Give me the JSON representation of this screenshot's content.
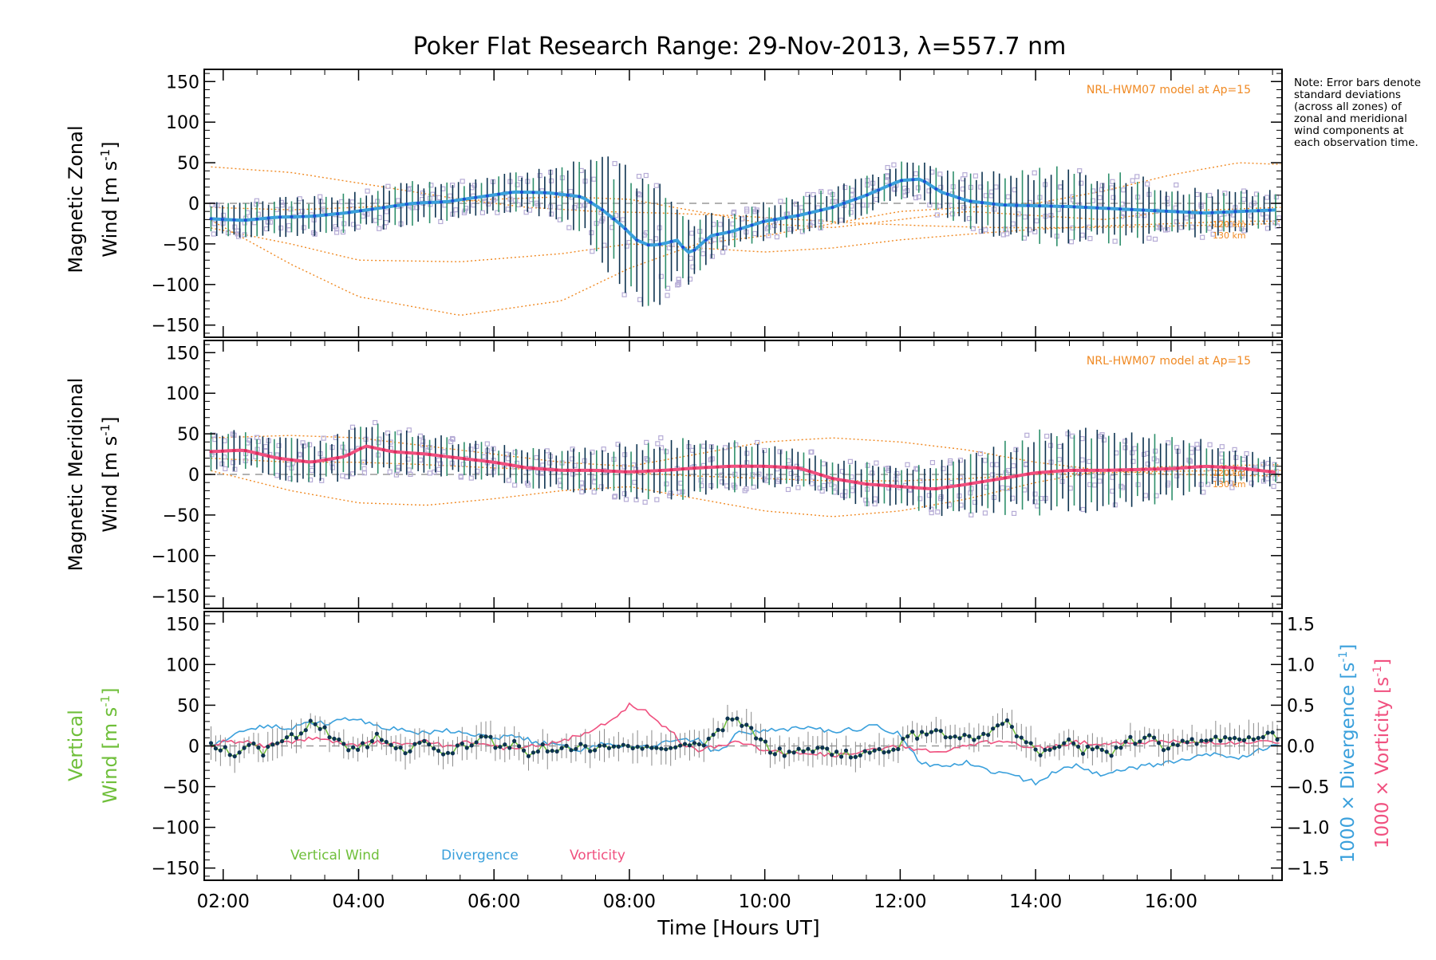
{
  "figure": {
    "title": "Poker Flat Research Range: 29-Nov-2013, λ=557.7 nm",
    "note": "Note: Error bars denote standard deviations (across all zones) of zonal and meridional wind components at each observation time.",
    "xlabel": "Time [Hours UT]",
    "colors": {
      "model": "#f08a24",
      "zonal": "#3aa0dc",
      "meridional": "#f0507f",
      "vertical": "#6fbf3a",
      "divergence": "#3aa0dc",
      "vorticity": "#f0507f",
      "scatter": "#b6acd6",
      "errorbar": "#0d3350",
      "zero": "#999999"
    }
  },
  "chart_data": [
    {
      "type": "line",
      "panel": "zonal",
      "ylabel_line1": "Magnetic Zonal",
      "ylabel_line2": "Wind",
      "ylabel_units": "[m s",
      "ylabel_sup": "-1",
      "ylabel_close": "]",
      "model_label": "NRL-HWM07 model at Ap=15",
      "alt_labels": [
        "120 km",
        "130 km"
      ],
      "ylim": [
        -165,
        165
      ],
      "yticks": [
        -150,
        -100,
        -50,
        0,
        50,
        100,
        150
      ],
      "xlim": [
        1.72,
        17.64
      ],
      "x_hours": [
        1.8,
        2.3,
        2.8,
        3.3,
        3.8,
        4.3,
        4.8,
        5.3,
        5.8,
        6.3,
        6.8,
        7.3,
        7.6,
        7.9,
        8.1,
        8.3,
        8.5,
        8.7,
        8.8,
        8.9,
        9.2,
        9.5,
        10.0,
        10.5,
        11.0,
        11.5,
        12.0,
        12.3,
        12.6,
        13.0,
        13.5,
        14.0,
        14.5,
        15.0,
        15.5,
        16.0,
        16.5,
        17.0,
        17.6
      ],
      "mean": [
        -19,
        -21,
        -17,
        -16,
        -12,
        -6,
        0,
        2,
        8,
        14,
        13,
        8,
        -8,
        -28,
        -45,
        -52,
        -50,
        -45,
        -55,
        -62,
        -40,
        -35,
        -22,
        -15,
        -5,
        10,
        28,
        30,
        14,
        3,
        -2,
        -3,
        -4,
        -6,
        -8,
        -10,
        -12,
        -10,
        -8
      ],
      "spread": [
        18,
        18,
        20,
        20,
        20,
        22,
        22,
        20,
        18,
        20,
        25,
        40,
        55,
        70,
        80,
        75,
        60,
        50,
        40,
        30,
        25,
        20,
        20,
        20,
        20,
        20,
        20,
        20,
        25,
        30,
        35,
        40,
        40,
        38,
        35,
        30,
        25,
        22,
        20
      ],
      "model_curves": [
        {
          "x": [
            1.8,
            3.0,
            4.0,
            5.5,
            7.0,
            8.0,
            9.0,
            10.0,
            11.0,
            12.0,
            13.0,
            14.0,
            15.0,
            16.0,
            17.0,
            17.6
          ],
          "y": [
            -20,
            -75,
            -115,
            -138,
            -120,
            -80,
            -50,
            -40,
            -25,
            -10,
            -5,
            0,
            15,
            35,
            50,
            48
          ]
        },
        {
          "x": [
            1.8,
            3.0,
            4.0,
            5.5,
            7.0,
            8.0,
            9.0,
            10.0,
            11.0,
            12.0,
            13.0,
            14.0,
            15.0,
            16.0,
            17.0,
            17.6
          ],
          "y": [
            -30,
            -50,
            -70,
            -72,
            -62,
            -50,
            -55,
            -60,
            -55,
            -45,
            -38,
            -32,
            -28,
            -25,
            -22,
            -22
          ]
        },
        {
          "x": [
            1.8,
            3.0,
            4.0,
            5.5,
            6.5,
            7.5,
            8.5,
            9.5,
            10.5,
            11.5,
            12.5,
            13.5,
            14.5,
            15.5,
            16.5,
            17.6
          ],
          "y": [
            45,
            38,
            25,
            5,
            -5,
            -10,
            -12,
            -15,
            -20,
            -25,
            -28,
            -30,
            -30,
            -29,
            -27,
            -25
          ]
        },
        {
          "x": [
            1.8,
            3.0,
            4.0,
            5.0,
            6.0,
            7.0,
            8.0,
            9.0,
            10.0,
            11.0,
            12.0,
            13.0,
            14.0,
            15.0,
            16.0,
            17.6
          ],
          "y": [
            -5,
            -8,
            -5,
            0,
            5,
            8,
            5,
            -10,
            -25,
            -30,
            -20,
            -10,
            -15,
            -20,
            -10,
            -5
          ]
        }
      ]
    },
    {
      "type": "line",
      "panel": "meridional",
      "ylabel_line1": "Magnetic Meridional",
      "ylabel_line2": "Wind",
      "ylabel_units": "[m s",
      "ylabel_sup": "-1",
      "ylabel_close": "]",
      "model_label": "NRL-HWM07 model at Ap=15",
      "alt_labels": [
        "120 km",
        "130 km"
      ],
      "ylim": [
        -165,
        165
      ],
      "yticks": [
        -150,
        -100,
        -50,
        0,
        50,
        100,
        150
      ],
      "xlim": [
        1.72,
        17.64
      ],
      "x_hours": [
        1.8,
        2.3,
        2.8,
        3.3,
        3.8,
        4.1,
        4.5,
        5.0,
        5.5,
        6.0,
        6.5,
        7.0,
        7.5,
        8.0,
        8.5,
        9.0,
        9.5,
        10.0,
        10.5,
        11.0,
        11.5,
        12.0,
        12.5,
        13.0,
        13.5,
        14.0,
        14.5,
        15.0,
        15.5,
        16.0,
        16.5,
        17.0,
        17.6
      ],
      "mean": [
        28,
        30,
        20,
        15,
        22,
        35,
        28,
        25,
        20,
        15,
        8,
        5,
        5,
        3,
        5,
        8,
        10,
        10,
        8,
        -5,
        -12,
        -15,
        -18,
        -12,
        -5,
        2,
        5,
        5,
        6,
        7,
        10,
        8,
        2
      ],
      "spread": [
        20,
        22,
        22,
        22,
        25,
        30,
        25,
        22,
        20,
        20,
        20,
        22,
        25,
        30,
        35,
        30,
        28,
        25,
        22,
        20,
        22,
        25,
        28,
        32,
        38,
        42,
        45,
        42,
        38,
        32,
        28,
        20,
        15
      ],
      "model_curves": [
        {
          "x": [
            1.8,
            3.0,
            4.0,
            5.0,
            6.0,
            7.0,
            8.0,
            9.0,
            10.0,
            11.0,
            12.0,
            13.0,
            14.0,
            15.0,
            16.0,
            17.6
          ],
          "y": [
            5,
            -20,
            -35,
            -38,
            -30,
            -20,
            -15,
            -30,
            -45,
            -52,
            -45,
            -30,
            -10,
            5,
            10,
            12
          ]
        },
        {
          "x": [
            1.8,
            3.0,
            4.0,
            5.0,
            6.0,
            7.0,
            8.0,
            9.0,
            10.0,
            11.0,
            12.0,
            13.0,
            14.0,
            15.0,
            16.0,
            17.6
          ],
          "y": [
            45,
            48,
            45,
            35,
            25,
            15,
            10,
            25,
            40,
            45,
            40,
            30,
            15,
            5,
            0,
            -2
          ]
        },
        {
          "x": [
            1.8,
            3.0,
            4.0,
            5.0,
            6.0,
            7.0,
            8.0,
            9.0,
            10.0,
            11.0,
            12.0,
            13.0,
            14.0,
            15.0,
            16.0,
            17.6
          ],
          "y": [
            20,
            15,
            15,
            12,
            8,
            5,
            2,
            -2,
            -5,
            -8,
            -8,
            -5,
            0,
            2,
            4,
            5
          ]
        }
      ]
    },
    {
      "type": "line",
      "panel": "vertical",
      "ylabel_line1": "Vertical",
      "ylabel_line2": "Wind",
      "ylabel_units": "[m s",
      "ylabel_sup": "-1",
      "ylabel_close": "]",
      "ylim": [
        -165,
        165
      ],
      "yticks": [
        -150,
        -100,
        -50,
        0,
        50,
        100,
        150
      ],
      "xlim": [
        1.72,
        17.64
      ],
      "xticks": [
        "02:00",
        "04:00",
        "06:00",
        "08:00",
        "10:00",
        "12:00",
        "14:00",
        "16:00"
      ],
      "xtick_hours": [
        2,
        4,
        6,
        8,
        10,
        12,
        14,
        16
      ],
      "y2ticks": [
        "1.5",
        "1.0",
        "0.5",
        "0.0",
        "−0.5",
        "−1.0",
        "−1.5"
      ],
      "y2tick_values": [
        1.5,
        1.0,
        0.5,
        0.0,
        -0.5,
        -1.0,
        -1.5
      ],
      "y2lim": [
        -1.65,
        1.65
      ],
      "y2label_div": "1000 × Divergence",
      "y2label_vort": "1000 × Vorticity",
      "y2label_units": "[s",
      "y2label_sup": "-1",
      "y2label_close": "]",
      "legend": [
        "Vertical Wind",
        "Divergence",
        "Vorticity"
      ],
      "vertical_wind": {
        "x": [
          1.8,
          2.0,
          2.2,
          2.4,
          2.6,
          2.8,
          3.0,
          3.2,
          3.3,
          3.5,
          3.7,
          3.9,
          4.1,
          4.3,
          4.5,
          4.7,
          4.9,
          5.1,
          5.3,
          5.5,
          5.7,
          5.9,
          6.1,
          6.3,
          6.5,
          6.7,
          6.9,
          7.1,
          7.3,
          7.5,
          7.7,
          7.9,
          8.1,
          8.3,
          8.5,
          8.7,
          8.9,
          9.1,
          9.3,
          9.5,
          9.7,
          9.9,
          10.1,
          10.3,
          10.5,
          10.7,
          10.9,
          11.1,
          11.3,
          11.5,
          11.7,
          11.9,
          12.1,
          12.3,
          12.5,
          12.7,
          12.9,
          13.1,
          13.3,
          13.5,
          13.6,
          13.7,
          13.9,
          14.1,
          14.3,
          14.5,
          14.7,
          14.9,
          15.1,
          15.3,
          15.5,
          15.7,
          15.9,
          16.1,
          16.3,
          16.5,
          16.7,
          16.9,
          17.1,
          17.3,
          17.5
        ],
        "y": [
          0,
          -5,
          -10,
          5,
          -8,
          0,
          10,
          15,
          28,
          18,
          5,
          -5,
          0,
          12,
          -2,
          -8,
          5,
          2,
          -12,
          0,
          5,
          10,
          -5,
          3,
          -8,
          0,
          -6,
          -3,
          0,
          -5,
          0,
          2,
          0,
          -3,
          0,
          3,
          0,
          5,
          15,
          35,
          25,
          10,
          -5,
          -8,
          -5,
          -3,
          -6,
          -8,
          -10,
          -8,
          -6,
          -5,
          12,
          14,
          15,
          15,
          10,
          12,
          15,
          25,
          30,
          15,
          5,
          -10,
          -2,
          5,
          -8,
          0,
          -12,
          5,
          8,
          12,
          -5,
          0,
          8,
          5,
          10,
          12,
          8,
          10,
          12
        ]
      },
      "divergence": {
        "x": [
          1.8,
          2.0,
          2.3,
          2.6,
          3.0,
          3.3,
          3.6,
          3.9,
          4.3,
          4.6,
          5.0,
          5.3,
          5.6,
          6.0,
          6.3,
          6.6,
          7.0,
          7.3,
          7.6,
          8.0,
          8.3,
          8.6,
          9.0,
          9.3,
          9.6,
          10.0,
          10.3,
          10.6,
          11.0,
          11.3,
          11.6,
          12.0,
          12.3,
          12.6,
          13.0,
          13.3,
          13.6,
          14.0,
          14.3,
          14.6,
          15.0,
          15.3,
          15.6,
          16.0,
          16.3,
          16.6,
          17.0,
          17.3,
          17.6
        ],
        "y": [
          0,
          0.05,
          0.2,
          0.25,
          0.22,
          0.3,
          0.28,
          0.35,
          0.25,
          0.2,
          0.15,
          0.2,
          0.15,
          0.1,
          0.12,
          0.05,
          0.0,
          -0.05,
          0.05,
          0.0,
          0.0,
          0.05,
          0.08,
          -0.1,
          0.15,
          0.18,
          0.2,
          0.22,
          0.18,
          0.2,
          0.25,
          0.15,
          -0.2,
          -0.25,
          -0.2,
          -0.3,
          -0.35,
          -0.45,
          -0.3,
          -0.25,
          -0.35,
          -0.3,
          -0.25,
          -0.2,
          -0.15,
          -0.1,
          -0.15,
          -0.05,
          0.0
        ]
      },
      "vorticity": {
        "x": [
          1.8,
          2.0,
          2.3,
          2.6,
          3.0,
          3.3,
          3.6,
          3.9,
          4.3,
          4.6,
          5.0,
          5.3,
          5.6,
          6.0,
          6.3,
          6.6,
          7.0,
          7.3,
          7.6,
          7.8,
          8.0,
          8.2,
          8.4,
          8.6,
          8.8,
          9.0,
          9.3,
          9.6,
          10.0,
          10.3,
          10.6,
          11.0,
          11.3,
          11.6,
          12.0,
          12.3,
          12.6,
          13.0,
          13.3,
          13.6,
          14.0,
          14.3,
          14.6,
          15.0,
          15.3,
          15.6,
          16.0,
          16.3,
          16.6,
          17.0,
          17.3,
          17.6
        ],
        "y": [
          0,
          0.05,
          0.05,
          0.0,
          0.05,
          0.1,
          0.05,
          0.0,
          0.05,
          0.02,
          0.05,
          0.0,
          0.05,
          0.0,
          -0.05,
          0.0,
          0.05,
          0.15,
          0.25,
          0.35,
          0.5,
          0.45,
          0.3,
          0.2,
          0.0,
          -0.05,
          0.0,
          0.05,
          -0.05,
          -0.1,
          -0.08,
          -0.12,
          -0.1,
          -0.05,
          0.0,
          -0.05,
          -0.08,
          0.0,
          0.05,
          0.03,
          -0.02,
          0.0,
          0.05,
          0.02,
          0.03,
          0.05,
          0.05,
          0.03,
          0.05,
          0.03,
          0.05,
          0.03
        ]
      }
    }
  ]
}
